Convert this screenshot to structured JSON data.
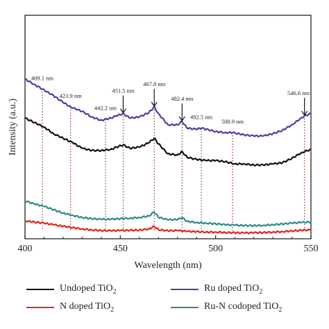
{
  "chart_data": {
    "type": "line",
    "xlabel": "Wavelength (nm)",
    "ylabel": "Intensity (a.u.)",
    "xlim": [
      400,
      550
    ],
    "ylim": [
      0,
      100
    ],
    "xticks": [
      400,
      450,
      500,
      550
    ],
    "grid": false,
    "y_tick_labels_shown": false,
    "legend_position": "bottom",
    "peaks": [
      {
        "x": 409.1,
        "label": "409.1 nm",
        "arrow": false
      },
      {
        "x": 423.9,
        "label": "423.9 nm",
        "arrow": false
      },
      {
        "x": 442.2,
        "label": "442.2 nm",
        "arrow": false
      },
      {
        "x": 451.5,
        "label": "451.5 nm",
        "arrow": true
      },
      {
        "x": 467.8,
        "label": "467.8 nm",
        "arrow": true
      },
      {
        "x": 482.4,
        "label": "482.4 nm",
        "arrow": true
      },
      {
        "x": 492.5,
        "label": "492.5 nm",
        "arrow": false
      },
      {
        "x": 508.9,
        "label": "508.9 nm",
        "arrow": false
      },
      {
        "x": 546.6,
        "label": "546.6 nm",
        "arrow": true
      }
    ],
    "series": [
      {
        "name": "Undoped TiO2",
        "color": "#111111",
        "x": [
          400,
          405,
          410,
          415,
          420,
          425,
          430,
          435,
          440,
          445,
          448,
          451.5,
          455,
          460,
          465,
          467.8,
          470,
          475,
          480,
          482.4,
          485,
          490,
          495,
          500,
          505,
          510,
          515,
          520,
          525,
          530,
          535,
          540,
          545,
          550
        ],
        "y": [
          54,
          52,
          50,
          47,
          45,
          43,
          40.5,
          39.5,
          39.5,
          40,
          41,
          42,
          40.5,
          41,
          43,
          45,
          42.5,
          38,
          37.5,
          39,
          36.5,
          35.5,
          35,
          35,
          34.5,
          33.5,
          33.5,
          33,
          33,
          33.5,
          34,
          36,
          38.5,
          40
        ]
      },
      {
        "name": "Ru doped TiO2",
        "color": "#4a3fa6",
        "x": [
          400,
          405,
          409.1,
          415,
          420,
          423.9,
          430,
          435,
          440,
          442.2,
          445,
          448,
          451.5,
          455,
          460,
          465,
          467.8,
          470,
          475,
          480,
          482.4,
          485,
          490,
          492.5,
          495,
          500,
          505,
          508.9,
          515,
          520,
          525,
          530,
          535,
          540,
          546.6,
          550
        ],
        "y": [
          71.5,
          69,
          67,
          64,
          61,
          59,
          57,
          54.5,
          53,
          53.5,
          54,
          55,
          56,
          54,
          54.5,
          56.5,
          59,
          56,
          51,
          51,
          52.5,
          49.5,
          49,
          49.5,
          49,
          48,
          47.5,
          47.5,
          46.5,
          46,
          46,
          47,
          48.5,
          51,
          55,
          56
        ]
      },
      {
        "name": "N doped TiO2",
        "color": "#e0261b",
        "x": [
          400,
          405,
          410,
          415,
          420,
          425,
          430,
          435,
          440,
          445,
          450,
          455,
          460,
          465,
          467.8,
          470,
          475,
          480,
          485,
          490,
          495,
          500,
          505,
          510,
          515,
          520,
          525,
          530,
          535,
          540,
          545,
          550
        ],
        "y": [
          8,
          7.5,
          7,
          6.3,
          5.6,
          5,
          4.4,
          4,
          3.7,
          3.6,
          3.7,
          3.8,
          3.9,
          4.4,
          5.5,
          4.1,
          3.6,
          3.7,
          3.3,
          3.2,
          3,
          3,
          2.8,
          2.7,
          2.6,
          2.7,
          2.8,
          3,
          3.2,
          3.5,
          3.8,
          4
        ]
      },
      {
        "name": "Ru-N codoped TiO2",
        "color": "#2a8c85",
        "x": [
          400,
          405,
          410,
          415,
          420,
          425,
          430,
          435,
          440,
          445,
          450,
          455,
          460,
          465,
          467.8,
          470,
          475,
          480,
          482.4,
          485,
          490,
          495,
          500,
          505,
          510,
          515,
          520,
          525,
          530,
          535,
          540,
          545,
          550
        ],
        "y": [
          17,
          15.5,
          14.5,
          13,
          11.5,
          10.5,
          9.5,
          9,
          8.7,
          8.7,
          9,
          9.2,
          9.5,
          10.2,
          12,
          9.6,
          8.5,
          8.6,
          9.4,
          7.8,
          7.3,
          7,
          6.7,
          6.3,
          6.1,
          5.9,
          5.9,
          6,
          6.3,
          6.6,
          7,
          7.3,
          7.5
        ]
      }
    ]
  },
  "legend": [
    {
      "pre": "Undoped TiO",
      "sub": "2"
    },
    {
      "pre": "Ru doped TiO",
      "sub": "2"
    },
    {
      "pre": "N doped TiO",
      "sub": "2"
    },
    {
      "pre": "Ru-N codoped TiO",
      "sub": "2"
    }
  ]
}
